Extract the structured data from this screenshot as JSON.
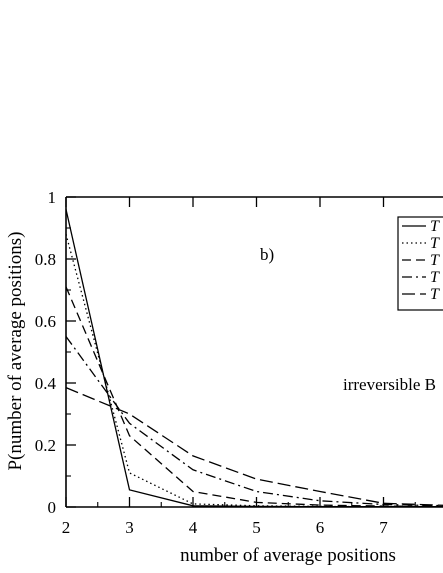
{
  "chart_data": {
    "type": "line",
    "panel_label": "b)",
    "annotation": "irreversible B",
    "xlabel": "number of average positions",
    "ylabel": "P(number of average positions)",
    "xlim": [
      2,
      8
    ],
    "ylim": [
      0,
      1
    ],
    "x_ticks": [
      "2",
      "3",
      "4",
      "5",
      "6",
      "7"
    ],
    "y_ticks": [
      "0",
      "0.2",
      "0.4",
      "0.6",
      "0.8",
      "1"
    ],
    "x": [
      2,
      3,
      4,
      5,
      6,
      7,
      8
    ],
    "series": [
      {
        "name": "T",
        "dash": "solid",
        "values": [
          0.96,
          0.055,
          0.004,
          0.002,
          0.001,
          0.001,
          0.001
        ]
      },
      {
        "name": "T",
        "dash": "dotted",
        "values": [
          0.88,
          0.11,
          0.01,
          0.004,
          0.002,
          0.001,
          0.001
        ]
      },
      {
        "name": "T",
        "dash": "dashed",
        "values": [
          0.71,
          0.23,
          0.05,
          0.015,
          0.006,
          0.003,
          0.002
        ]
      },
      {
        "name": "T",
        "dash": "dashdot",
        "values": [
          0.55,
          0.27,
          0.12,
          0.05,
          0.02,
          0.008,
          0.004
        ]
      },
      {
        "name": "T",
        "dash": "longdash",
        "values": [
          0.385,
          0.3,
          0.165,
          0.09,
          0.05,
          0.012,
          0.005
        ]
      }
    ],
    "legend_placement": "top-right",
    "grid": false
  }
}
